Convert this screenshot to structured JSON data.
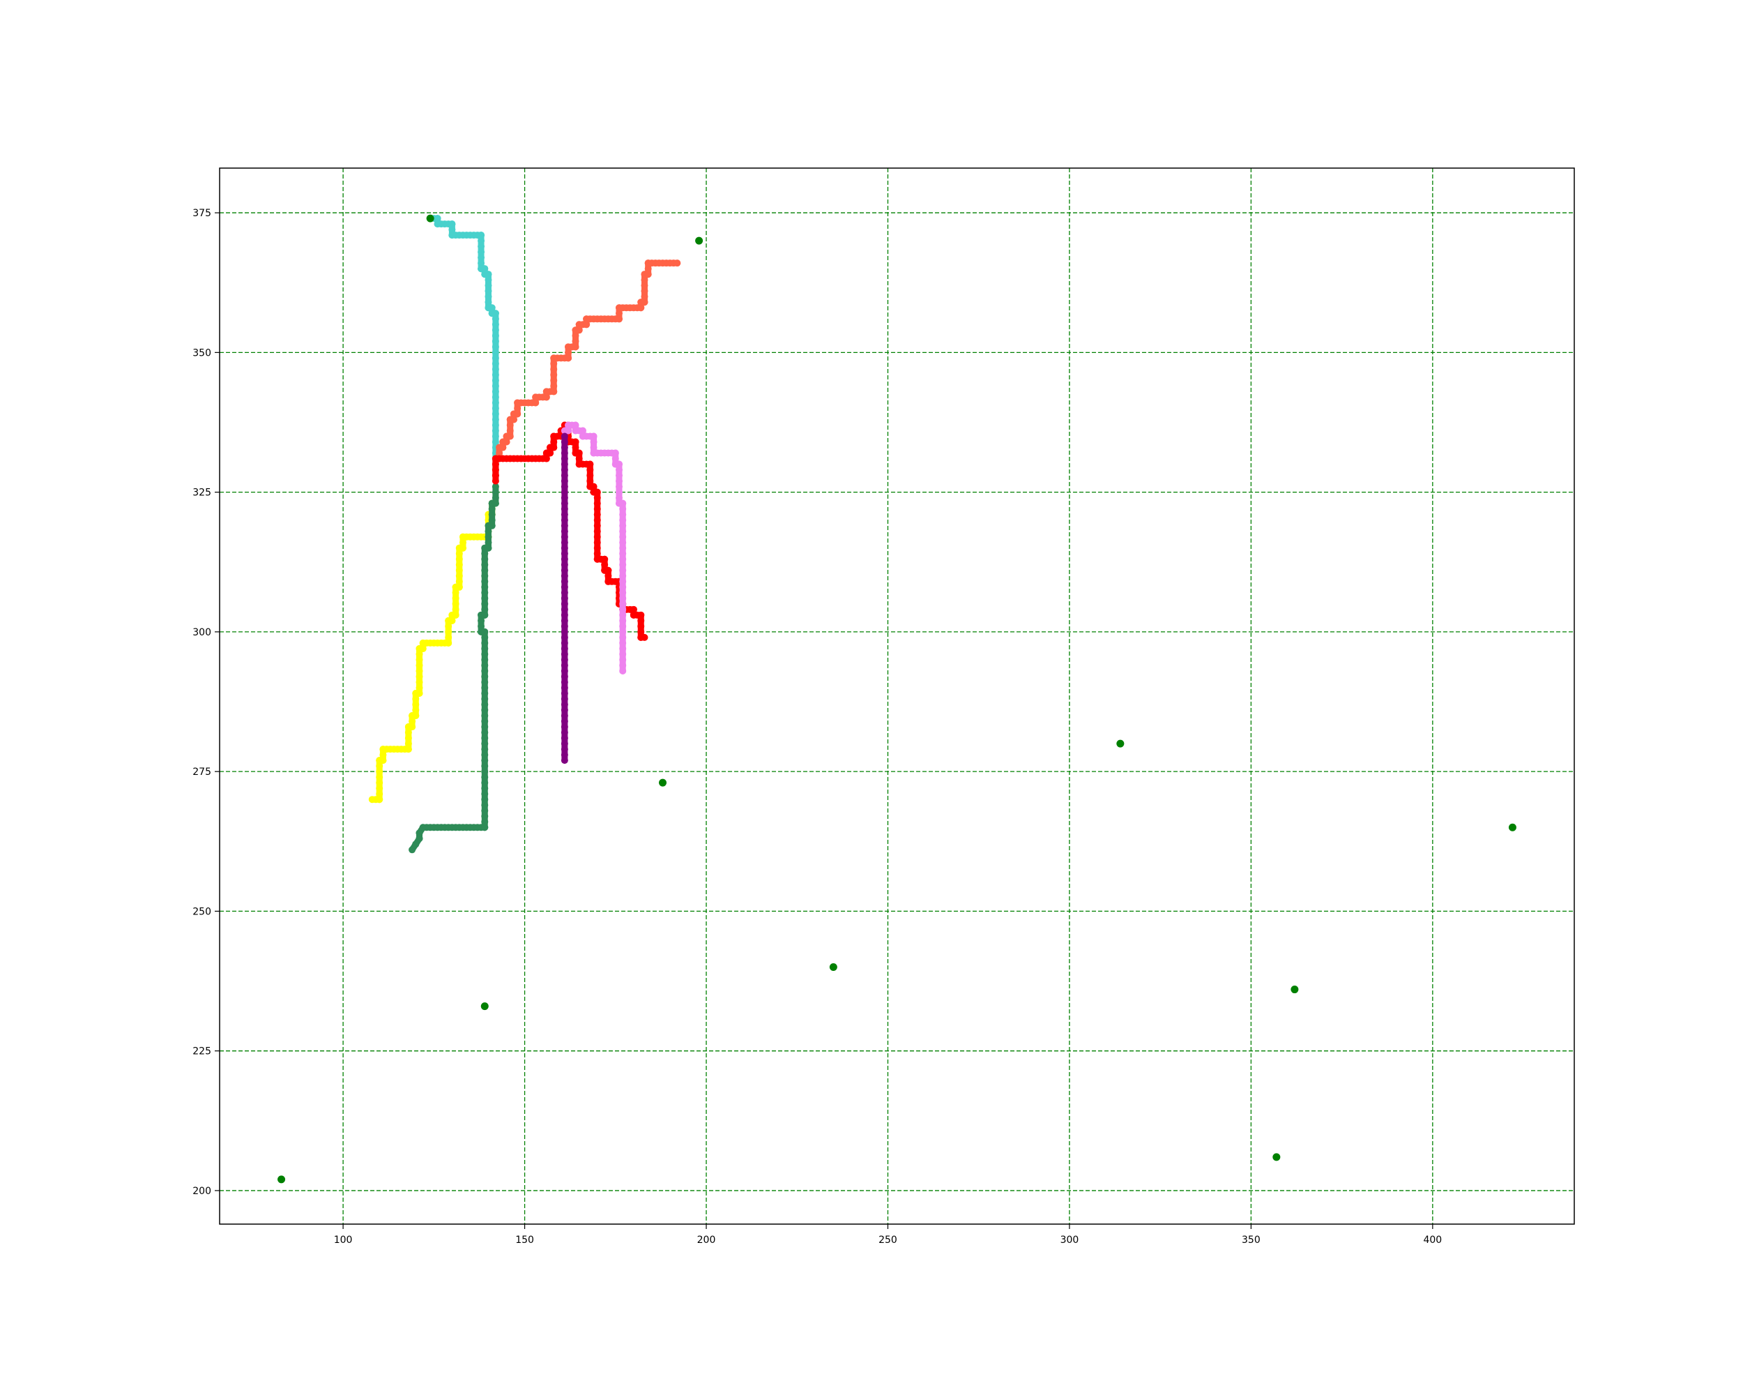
{
  "chart_data": {
    "type": "scatter",
    "title": "",
    "xlabel": "",
    "ylabel": "",
    "xlim": [
      66,
      439
    ],
    "ylim": [
      194,
      383
    ],
    "grid": true,
    "grid_color": "#008000",
    "x_ticks": [
      100,
      150,
      200,
      250,
      300,
      350,
      400
    ],
    "y_ticks": [
      200,
      225,
      250,
      275,
      300,
      325,
      350,
      375
    ],
    "points": {
      "color": "#008000",
      "values": [
        [
          124,
          374
        ],
        [
          198,
          370
        ],
        [
          314,
          280
        ],
        [
          188,
          273
        ],
        [
          422,
          265
        ],
        [
          235,
          240
        ],
        [
          362,
          236
        ],
        [
          139,
          233
        ],
        [
          357,
          206
        ],
        [
          83,
          202
        ]
      ]
    },
    "series": [
      {
        "color": "#48d1cc",
        "values": [
          [
            124,
            374
          ],
          [
            126,
            374
          ],
          [
            126,
            373
          ],
          [
            130,
            373
          ],
          [
            130,
            371
          ],
          [
            138,
            371
          ],
          [
            138,
            365
          ],
          [
            139,
            365
          ],
          [
            139,
            364
          ],
          [
            140,
            364
          ],
          [
            140,
            358
          ],
          [
            141,
            358
          ],
          [
            141,
            357
          ],
          [
            142,
            357
          ],
          [
            142,
            328
          ]
        ]
      },
      {
        "color": "#ff6347",
        "values": [
          [
            142,
            328
          ],
          [
            142,
            331
          ],
          [
            143,
            331
          ],
          [
            143,
            333
          ],
          [
            144,
            333
          ],
          [
            144,
            334
          ],
          [
            145,
            334
          ],
          [
            145,
            335
          ],
          [
            146,
            335
          ],
          [
            146,
            338
          ],
          [
            147,
            338
          ],
          [
            147,
            339
          ],
          [
            148,
            339
          ],
          [
            148,
            341
          ],
          [
            153,
            341
          ],
          [
            153,
            342
          ],
          [
            156,
            342
          ],
          [
            156,
            343
          ],
          [
            158,
            343
          ],
          [
            158,
            349
          ],
          [
            162,
            349
          ],
          [
            162,
            351
          ],
          [
            164,
            351
          ],
          [
            164,
            354
          ],
          [
            165,
            354
          ],
          [
            165,
            355
          ],
          [
            167,
            355
          ],
          [
            167,
            356
          ],
          [
            176,
            356
          ],
          [
            176,
            358
          ],
          [
            182,
            358
          ],
          [
            182,
            359
          ],
          [
            183,
            359
          ],
          [
            183,
            364
          ],
          [
            184,
            364
          ],
          [
            184,
            366
          ],
          [
            192,
            366
          ]
        ]
      },
      {
        "color": "#ffff00",
        "values": [
          [
            108,
            270
          ],
          [
            110,
            270
          ],
          [
            110,
            277
          ],
          [
            111,
            277
          ],
          [
            111,
            279
          ],
          [
            118,
            279
          ],
          [
            118,
            283
          ],
          [
            119,
            283
          ],
          [
            119,
            285
          ],
          [
            120,
            285
          ],
          [
            120,
            289
          ],
          [
            121,
            289
          ],
          [
            121,
            297
          ],
          [
            122,
            297
          ],
          [
            122,
            298
          ],
          [
            129,
            298
          ],
          [
            129,
            302
          ],
          [
            130,
            302
          ],
          [
            130,
            303
          ],
          [
            131,
            303
          ],
          [
            131,
            308
          ],
          [
            132,
            308
          ],
          [
            132,
            315
          ],
          [
            133,
            315
          ],
          [
            133,
            317
          ],
          [
            140,
            317
          ],
          [
            140,
            321
          ],
          [
            141,
            321
          ],
          [
            141,
            323
          ]
        ]
      },
      {
        "color": "#2e8b57",
        "values": [
          [
            119,
            261
          ],
          [
            120,
            262
          ],
          [
            121,
            263
          ],
          [
            121,
            264
          ],
          [
            122,
            265
          ],
          [
            139,
            265
          ],
          [
            139,
            300
          ],
          [
            138,
            300
          ],
          [
            138,
            303
          ],
          [
            139,
            303
          ],
          [
            139,
            315
          ],
          [
            140,
            315
          ],
          [
            140,
            319
          ],
          [
            141,
            319
          ],
          [
            141,
            323
          ],
          [
            142,
            323
          ],
          [
            142,
            326
          ]
        ]
      },
      {
        "color": "#ff0000",
        "values": [
          [
            142,
            327
          ],
          [
            142,
            331
          ],
          [
            156,
            331
          ],
          [
            156,
            332
          ],
          [
            157,
            332
          ],
          [
            157,
            333
          ],
          [
            158,
            333
          ],
          [
            158,
            335
          ],
          [
            160,
            335
          ],
          [
            160,
            336
          ],
          [
            161,
            336
          ],
          [
            161,
            337
          ],
          [
            162,
            337
          ],
          [
            162,
            334
          ],
          [
            164,
            334
          ],
          [
            164,
            332
          ],
          [
            165,
            332
          ],
          [
            165,
            330
          ],
          [
            168,
            330
          ],
          [
            168,
            326
          ],
          [
            169,
            326
          ],
          [
            169,
            325
          ],
          [
            170,
            325
          ],
          [
            170,
            313
          ],
          [
            172,
            313
          ],
          [
            172,
            311
          ],
          [
            173,
            311
          ],
          [
            173,
            309
          ],
          [
            176,
            309
          ],
          [
            176,
            305
          ],
          [
            177,
            305
          ],
          [
            177,
            304
          ],
          [
            180,
            304
          ],
          [
            180,
            303
          ],
          [
            182,
            303
          ],
          [
            182,
            299
          ],
          [
            183,
            299
          ]
        ]
      },
      {
        "color": "#ee82ee",
        "values": [
          [
            161,
            336
          ],
          [
            162,
            336
          ],
          [
            162,
            337
          ],
          [
            164,
            337
          ],
          [
            164,
            336
          ],
          [
            166,
            336
          ],
          [
            166,
            335
          ],
          [
            169,
            335
          ],
          [
            169,
            332
          ],
          [
            175,
            332
          ],
          [
            175,
            330
          ],
          [
            176,
            330
          ],
          [
            176,
            323
          ],
          [
            177,
            323
          ],
          [
            177,
            293
          ]
        ]
      },
      {
        "color": "#800080",
        "values": [
          [
            161,
            277
          ],
          [
            161,
            335
          ]
        ]
      }
    ]
  }
}
